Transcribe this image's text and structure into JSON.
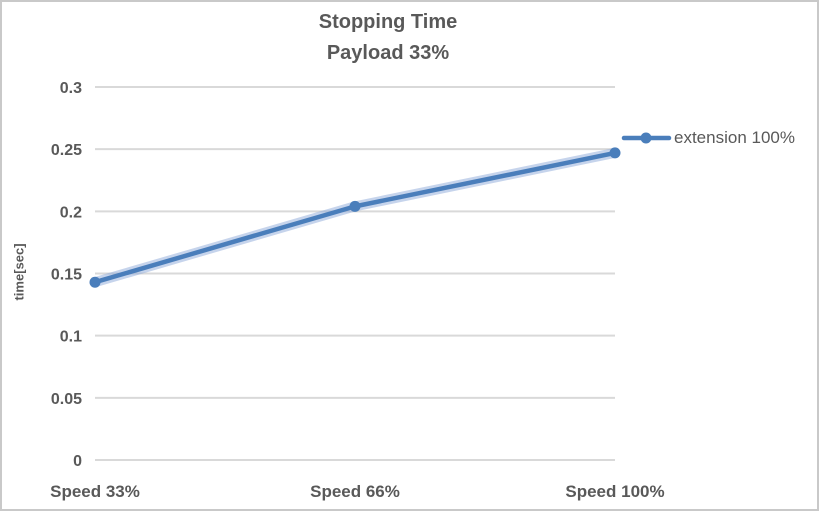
{
  "window": {
    "background": "#ffffff",
    "border_color": "#c9c9c9"
  },
  "chart_data": {
    "type": "line",
    "title_lines": [
      "Stopping Time",
      "Payload 33%"
    ],
    "categories": [
      "Speed 33%",
      "Speed 66%",
      "Speed 100%"
    ],
    "series": [
      {
        "name": "extension 100%",
        "values": [
          0.143,
          0.204,
          0.247
        ],
        "color": "#4a7ebb",
        "halo_color": "rgba(141,169,217,0.5)",
        "marker": "circle"
      }
    ],
    "xlabel": "",
    "ylabel": "time[sec]",
    "ylim": [
      0,
      0.3
    ],
    "ytick_step": 0.05,
    "yticks": [
      "0",
      "0.05",
      "0.1",
      "0.15",
      "0.2",
      "0.25",
      "0.3"
    ],
    "grid": true,
    "gridline_color": "#d9d9d9",
    "axis_text_color": "#595959",
    "legend_position": "right"
  }
}
